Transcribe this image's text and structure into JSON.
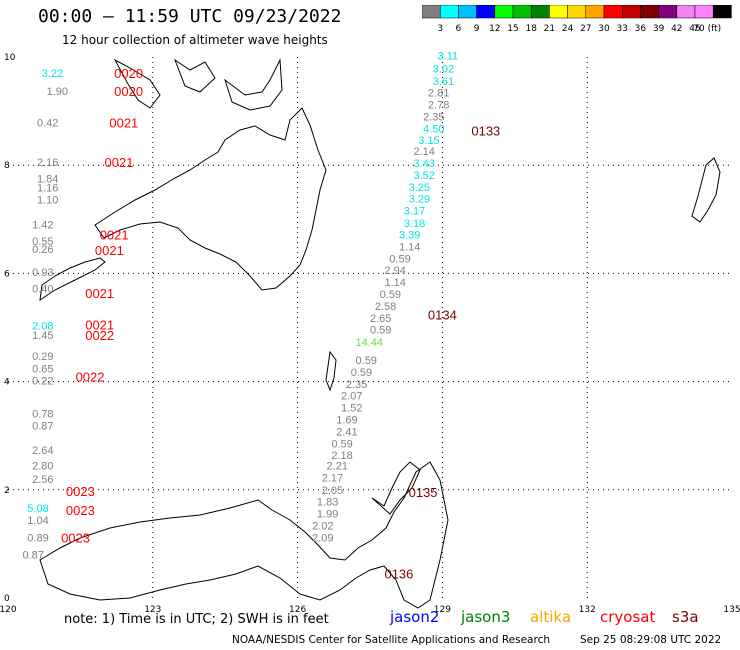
{
  "header": {
    "title": "00:00 — 11:59 UTC 09/23/2022",
    "subtitle": "12 hour collection of altimeter wave heights"
  },
  "colorbar": {
    "labels": [
      "3",
      "6",
      "9",
      "12",
      "15",
      "18",
      "21",
      "24",
      "27",
      "30",
      "33",
      "36",
      "39",
      "42",
      "45",
      "70 (ft)"
    ],
    "colors": [
      "#808080",
      "#00ffff",
      "#00bfff",
      "#0000ff",
      "#00ff00",
      "#00c000",
      "#008000",
      "#ffff00",
      "#ffd700",
      "#ffa500",
      "#ff0000",
      "#c00000",
      "#800000",
      "#800080",
      "#ee82ee",
      "#ff80ff",
      "#000000"
    ]
  },
  "chart_data": {
    "type": "scatter",
    "x_ticks": [
      "120",
      "123",
      "126",
      "129",
      "132",
      "135"
    ],
    "y_ticks": [
      "0",
      "2",
      "4",
      "6",
      "8",
      "10"
    ],
    "xlim": [
      120,
      135
    ],
    "ylim": [
      0,
      10
    ],
    "grid": true,
    "track_labels": [
      {
        "text": "0020",
        "lon": 122.2,
        "lat": 9.7,
        "color": "#ff0000"
      },
      {
        "text": "0020",
        "lon": 122.2,
        "lat": 9.37,
        "color": "#ff0000"
      },
      {
        "text": "0021",
        "lon": 122.1,
        "lat": 8.79,
        "color": "#ff0000"
      },
      {
        "text": "0021",
        "lon": 122.0,
        "lat": 8.06,
        "color": "#ff0000"
      },
      {
        "text": "0021",
        "lon": 121.9,
        "lat": 6.72,
        "color": "#ff0000"
      },
      {
        "text": "0021",
        "lon": 121.8,
        "lat": 6.43,
        "color": "#ff0000"
      },
      {
        "text": "0021",
        "lon": 121.6,
        "lat": 5.64,
        "color": "#ff0000"
      },
      {
        "text": "0021",
        "lon": 121.6,
        "lat": 5.06,
        "color": "#ff0000"
      },
      {
        "text": "0022",
        "lon": 121.6,
        "lat": 4.86,
        "color": "#ff0000"
      },
      {
        "text": "0022",
        "lon": 121.4,
        "lat": 4.09,
        "color": "#ff0000"
      },
      {
        "text": "0023",
        "lon": 121.2,
        "lat": 1.98,
        "color": "#ff0000"
      },
      {
        "text": "0023",
        "lon": 121.2,
        "lat": 1.63,
        "color": "#ff0000"
      },
      {
        "text": "0023",
        "lon": 121.1,
        "lat": 1.12,
        "color": "#ff0000"
      },
      {
        "text": "0133",
        "lon": 129.6,
        "lat": 8.64,
        "color": "#800000"
      },
      {
        "text": "0134",
        "lon": 128.7,
        "lat": 5.24,
        "color": "#800000"
      },
      {
        "text": "0135",
        "lon": 128.3,
        "lat": 1.96,
        "color": "#800000"
      },
      {
        "text": "0136",
        "lon": 127.8,
        "lat": 0.45,
        "color": "#800000"
      }
    ],
    "points": [
      {
        "v": "3.22",
        "lon": 120.7,
        "lat": 9.7,
        "color": "#00e5e5"
      },
      {
        "v": "1.90",
        "lon": 120.8,
        "lat": 9.37,
        "color": "#808080"
      },
      {
        "v": "0.42",
        "lon": 120.6,
        "lat": 8.79,
        "color": "#808080"
      },
      {
        "v": "2.16",
        "lon": 120.6,
        "lat": 8.06,
        "color": "#808080"
      },
      {
        "v": "1.84",
        "lon": 120.6,
        "lat": 7.75,
        "color": "#808080"
      },
      {
        "v": "1.16",
        "lon": 120.6,
        "lat": 7.59,
        "color": "#808080"
      },
      {
        "v": "1.10",
        "lon": 120.6,
        "lat": 7.37,
        "color": "#808080"
      },
      {
        "v": "1.42",
        "lon": 120.5,
        "lat": 6.9,
        "color": "#808080"
      },
      {
        "v": "0.55",
        "lon": 120.5,
        "lat": 6.6,
        "color": "#808080"
      },
      {
        "v": "0.26",
        "lon": 120.5,
        "lat": 6.45,
        "color": "#808080"
      },
      {
        "v": "0.93",
        "lon": 120.5,
        "lat": 6.03,
        "color": "#808080"
      },
      {
        "v": "0.40",
        "lon": 120.5,
        "lat": 5.72,
        "color": "#808080"
      },
      {
        "v": "2.08",
        "lon": 120.5,
        "lat": 5.04,
        "color": "#00e5e5"
      },
      {
        "v": "1.45",
        "lon": 120.5,
        "lat": 4.86,
        "color": "#808080"
      },
      {
        "v": "0.29",
        "lon": 120.5,
        "lat": 4.47,
        "color": "#808080"
      },
      {
        "v": "0.65",
        "lon": 120.5,
        "lat": 4.24,
        "color": "#808080"
      },
      {
        "v": "0.22",
        "lon": 120.5,
        "lat": 4.02,
        "color": "#808080"
      },
      {
        "v": "0.78",
        "lon": 120.5,
        "lat": 3.41,
        "color": "#808080"
      },
      {
        "v": "0.87",
        "lon": 120.5,
        "lat": 3.19,
        "color": "#808080"
      },
      {
        "v": "2.64",
        "lon": 120.5,
        "lat": 2.74,
        "color": "#808080"
      },
      {
        "v": "2.80",
        "lon": 120.5,
        "lat": 2.45,
        "color": "#808080"
      },
      {
        "v": "2.56",
        "lon": 120.5,
        "lat": 2.2,
        "color": "#808080"
      },
      {
        "v": "5.08",
        "lon": 120.4,
        "lat": 1.66,
        "color": "#00e5e5"
      },
      {
        "v": "1.04",
        "lon": 120.4,
        "lat": 1.44,
        "color": "#808080"
      },
      {
        "v": "0.89",
        "lon": 120.4,
        "lat": 1.12,
        "color": "#808080"
      },
      {
        "v": "0.87",
        "lon": 120.3,
        "lat": 0.8,
        "color": "#808080"
      },
      {
        "v": "3.11",
        "lon": 128.9,
        "lat": 10.03,
        "color": "#00e5e5"
      },
      {
        "v": "3.02",
        "lon": 128.8,
        "lat": 9.79,
        "color": "#00e5e5"
      },
      {
        "v": "3.61",
        "lon": 128.8,
        "lat": 9.56,
        "color": "#00e5e5"
      },
      {
        "v": "2.81",
        "lon": 128.7,
        "lat": 9.34,
        "color": "#808080"
      },
      {
        "v": "2.78",
        "lon": 128.7,
        "lat": 9.12,
        "color": "#808080"
      },
      {
        "v": "2.35",
        "lon": 128.6,
        "lat": 8.9,
        "color": "#808080"
      },
      {
        "v": "4.50",
        "lon": 128.6,
        "lat": 8.68,
        "color": "#00e5e5"
      },
      {
        "v": "3.15",
        "lon": 128.5,
        "lat": 8.47,
        "color": "#00e5e5"
      },
      {
        "v": "2.14",
        "lon": 128.4,
        "lat": 8.26,
        "color": "#808080"
      },
      {
        "v": "3.43",
        "lon": 128.4,
        "lat": 8.04,
        "color": "#00e5e5"
      },
      {
        "v": "3.52",
        "lon": 128.4,
        "lat": 7.82,
        "color": "#00e5e5"
      },
      {
        "v": "3.25",
        "lon": 128.3,
        "lat": 7.6,
        "color": "#00e5e5"
      },
      {
        "v": "3.29",
        "lon": 128.3,
        "lat": 7.38,
        "color": "#00e5e5"
      },
      {
        "v": "3.17",
        "lon": 128.2,
        "lat": 7.16,
        "color": "#00e5e5"
      },
      {
        "v": "3.18",
        "lon": 128.2,
        "lat": 6.93,
        "color": "#00e5e5"
      },
      {
        "v": "3.39",
        "lon": 128.1,
        "lat": 6.72,
        "color": "#00e5e5"
      },
      {
        "v": "1.14",
        "lon": 128.1,
        "lat": 6.5,
        "color": "#808080"
      },
      {
        "v": "0.59",
        "lon": 127.9,
        "lat": 6.28,
        "color": "#808080"
      },
      {
        "v": "2.94",
        "lon": 127.8,
        "lat": 6.06,
        "color": "#808080"
      },
      {
        "v": "1.14",
        "lon": 127.8,
        "lat": 5.84,
        "color": "#808080"
      },
      {
        "v": "0.59",
        "lon": 127.7,
        "lat": 5.62,
        "color": "#808080"
      },
      {
        "v": "2.58",
        "lon": 127.6,
        "lat": 5.4,
        "color": "#808080"
      },
      {
        "v": "2.65",
        "lon": 127.5,
        "lat": 5.18,
        "color": "#808080"
      },
      {
        "v": "0.59",
        "lon": 127.5,
        "lat": 4.96,
        "color": "#808080"
      },
      {
        "v": "14.44",
        "lon": 127.2,
        "lat": 4.73,
        "color": "#66dd44"
      },
      {
        "v": "0.59",
        "lon": 127.2,
        "lat": 4.4,
        "color": "#808080"
      },
      {
        "v": "0.59",
        "lon": 127.1,
        "lat": 4.18,
        "color": "#808080"
      },
      {
        "v": "2.35",
        "lon": 127.0,
        "lat": 3.96,
        "color": "#808080"
      },
      {
        "v": "2.07",
        "lon": 126.9,
        "lat": 3.74,
        "color": "#808080"
      },
      {
        "v": "1.52",
        "lon": 126.9,
        "lat": 3.52,
        "color": "#808080"
      },
      {
        "v": "1.69",
        "lon": 126.8,
        "lat": 3.3,
        "color": "#808080"
      },
      {
        "v": "2.41",
        "lon": 126.8,
        "lat": 3.08,
        "color": "#808080"
      },
      {
        "v": "0.59",
        "lon": 126.7,
        "lat": 2.86,
        "color": "#808080"
      },
      {
        "v": "2.18",
        "lon": 126.7,
        "lat": 2.64,
        "color": "#808080"
      },
      {
        "v": "2.21",
        "lon": 126.6,
        "lat": 2.45,
        "color": "#808080"
      },
      {
        "v": "2.17",
        "lon": 126.5,
        "lat": 2.23,
        "color": "#808080"
      },
      {
        "v": "2.05",
        "lon": 126.5,
        "lat": 2.0,
        "color": "#808080"
      },
      {
        "v": "1.83",
        "lon": 126.4,
        "lat": 1.78,
        "color": "#808080"
      },
      {
        "v": "1.99",
        "lon": 126.4,
        "lat": 1.56,
        "color": "#808080"
      },
      {
        "v": "2.02",
        "lon": 126.3,
        "lat": 1.34,
        "color": "#808080"
      },
      {
        "v": "2.09",
        "lon": 126.3,
        "lat": 1.12,
        "color": "#808080"
      }
    ]
  },
  "footer": {
    "note": "note:  1) Time is in UTC;  2) SWH is in feet",
    "satellites": [
      {
        "name": "jason2",
        "color": "#0000ff"
      },
      {
        "name": "jason3",
        "color": "#008000"
      },
      {
        "name": "altika",
        "color": "#ffa500"
      },
      {
        "name": "cryosat",
        "color": "#ff0000"
      },
      {
        "name": "s3a",
        "color": "#800000"
      }
    ],
    "credit": "NOAA/NESDIS Center for Satellite Applications and Research",
    "timestamp": "Sep 25 08:29:08 UTC 2022"
  }
}
